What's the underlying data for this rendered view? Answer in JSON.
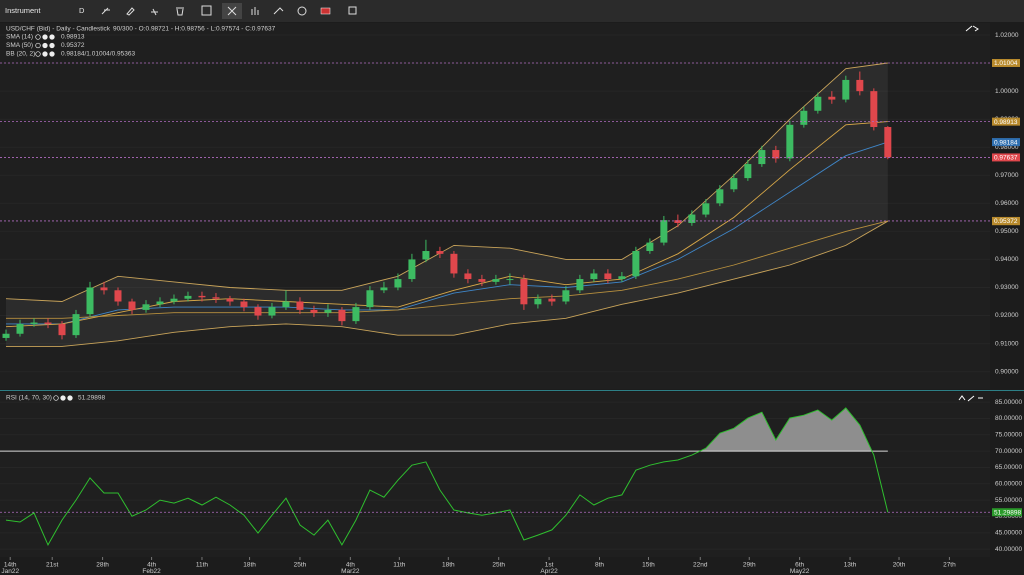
{
  "toolbar": {
    "instrument": "Instrument",
    "period": "D"
  },
  "chart_data": [
    {
      "type": "candlestick",
      "title": "USD/CHF (Bid) - Daily - Candlestick",
      "info": "90/300 - O:0.98721 - H:0.98756 - L:0.97574 - C:0.97637",
      "legend": [
        {
          "name": "SMA (14)",
          "reading": "0.98913"
        },
        {
          "name": "SMA (50)",
          "reading": "0.95372"
        },
        {
          "name": "BB (20, 2)",
          "reading": "0.98184/1.01004/0.95363"
        }
      ],
      "up_color": "#3dbb62",
      "down_color": "#e0474c",
      "open": [
        0.912,
        0.9135,
        0.917,
        0.9175,
        0.917,
        0.913,
        0.9205,
        0.93,
        0.929,
        0.925,
        0.922,
        0.924,
        0.925,
        0.926,
        0.927,
        0.9265,
        0.926,
        0.925,
        0.923,
        0.92,
        0.923,
        0.925,
        0.922,
        0.921,
        0.922,
        0.918,
        0.923,
        0.929,
        0.93,
        0.933,
        0.94,
        0.943,
        0.942,
        0.935,
        0.933,
        0.932,
        0.933,
        0.933,
        0.924,
        0.926,
        0.925,
        0.929,
        0.933,
        0.935,
        0.933,
        0.934,
        0.943,
        0.946,
        0.954,
        0.953,
        0.956,
        0.96,
        0.965,
        0.969,
        0.974,
        0.979,
        0.976,
        0.988,
        0.993,
        0.998,
        0.997,
        1.004,
        1.0,
        0.98721
      ],
      "high": [
        0.915,
        0.9185,
        0.919,
        0.919,
        0.918,
        0.922,
        0.932,
        0.932,
        0.93,
        0.926,
        0.9255,
        0.9265,
        0.9275,
        0.9285,
        0.9285,
        0.928,
        0.927,
        0.926,
        0.924,
        0.9245,
        0.929,
        0.9265,
        0.9235,
        0.924,
        0.923,
        0.9245,
        0.9305,
        0.932,
        0.935,
        0.942,
        0.947,
        0.9445,
        0.943,
        0.9365,
        0.9345,
        0.9345,
        0.935,
        0.9345,
        0.9275,
        0.9275,
        0.9305,
        0.9345,
        0.9365,
        0.9365,
        0.9355,
        0.9445,
        0.9475,
        0.9555,
        0.956,
        0.9575,
        0.9615,
        0.9665,
        0.9705,
        0.9755,
        0.9805,
        0.9805,
        0.9895,
        0.9945,
        0.9995,
        1.0,
        1.0055,
        1.007,
        1.001,
        0.98756
      ],
      "low": [
        0.911,
        0.9125,
        0.916,
        0.9155,
        0.9115,
        0.912,
        0.9195,
        0.9275,
        0.9235,
        0.9205,
        0.921,
        0.923,
        0.924,
        0.925,
        0.925,
        0.9245,
        0.9235,
        0.9215,
        0.9185,
        0.919,
        0.922,
        0.9205,
        0.9195,
        0.9195,
        0.9165,
        0.917,
        0.922,
        0.928,
        0.929,
        0.932,
        0.939,
        0.9405,
        0.9335,
        0.9315,
        0.9305,
        0.931,
        0.931,
        0.922,
        0.9225,
        0.9235,
        0.924,
        0.928,
        0.932,
        0.9315,
        0.932,
        0.933,
        0.942,
        0.945,
        0.9515,
        0.952,
        0.955,
        0.959,
        0.964,
        0.968,
        0.973,
        0.9745,
        0.975,
        0.987,
        0.992,
        0.9955,
        0.996,
        0.9985,
        0.986,
        0.97574
      ],
      "close": [
        0.9135,
        0.917,
        0.9175,
        0.917,
        0.913,
        0.9205,
        0.93,
        0.929,
        0.925,
        0.922,
        0.924,
        0.925,
        0.926,
        0.927,
        0.9265,
        0.926,
        0.925,
        0.923,
        0.92,
        0.923,
        0.925,
        0.922,
        0.921,
        0.922,
        0.918,
        0.923,
        0.929,
        0.93,
        0.933,
        0.94,
        0.943,
        0.942,
        0.935,
        0.933,
        0.932,
        0.933,
        0.933,
        0.924,
        0.926,
        0.925,
        0.929,
        0.933,
        0.935,
        0.933,
        0.934,
        0.943,
        0.946,
        0.954,
        0.953,
        0.956,
        0.96,
        0.965,
        0.969,
        0.974,
        0.979,
        0.976,
        0.988,
        0.993,
        0.998,
        0.997,
        1.004,
        1.0,
        0.98721,
        0.97637
      ],
      "series": [
        {
          "color": "#c9a45a",
          "dashed": true,
          "x": [
            0,
            4,
            8,
            12,
            16,
            20,
            24,
            28,
            32,
            36,
            40,
            44,
            48,
            52,
            56,
            60,
            63
          ],
          "values": [
            0.926,
            0.925,
            0.934,
            0.932,
            0.93,
            0.929,
            0.929,
            0.934,
            0.945,
            0.944,
            0.94,
            0.94,
            0.952,
            0.97,
            0.99,
            1.008,
            1.01004
          ]
        },
        {
          "color": "#c9a45a",
          "x": [
            0,
            4,
            8,
            12,
            16,
            20,
            24,
            28,
            32,
            36,
            40,
            44,
            48,
            52,
            56,
            60,
            63
          ],
          "values": [
            0.909,
            0.909,
            0.911,
            0.914,
            0.916,
            0.917,
            0.916,
            0.913,
            0.913,
            0.917,
            0.919,
            0.924,
            0.928,
            0.933,
            0.938,
            0.945,
            0.95363
          ]
        },
        {
          "color": "#3f86c8",
          "x": [
            0,
            4,
            8,
            12,
            16,
            20,
            24,
            28,
            32,
            36,
            40,
            44,
            48,
            52,
            56,
            60,
            63
          ],
          "values": [
            0.917,
            0.917,
            0.922,
            0.923,
            0.923,
            0.923,
            0.922,
            0.922,
            0.928,
            0.931,
            0.93,
            0.932,
            0.94,
            0.951,
            0.964,
            0.977,
            0.98184
          ]
        },
        {
          "color": "#d8a848",
          "dashed": true,
          "x": [
            0,
            4,
            8,
            12,
            16,
            20,
            24,
            28,
            32,
            36,
            40,
            44,
            48,
            52,
            56,
            60,
            63
          ],
          "values": [
            0.916,
            0.917,
            0.921,
            0.925,
            0.926,
            0.925,
            0.924,
            0.923,
            0.929,
            0.934,
            0.931,
            0.933,
            0.942,
            0.955,
            0.972,
            0.988,
            0.98913
          ]
        },
        {
          "color": "#b8903e",
          "dashed": true,
          "x": [
            0,
            4,
            8,
            12,
            16,
            20,
            24,
            28,
            32,
            36,
            40,
            44,
            48,
            52,
            56,
            60,
            63
          ],
          "values": [
            0.919,
            0.919,
            0.92,
            0.921,
            0.921,
            0.921,
            0.921,
            0.922,
            0.924,
            0.926,
            0.927,
            0.929,
            0.933,
            0.938,
            0.944,
            0.95,
            0.95372
          ]
        }
      ],
      "close_dashed": true,
      "xlim": [
        -0.43,
        70.3
      ],
      "ylim": [
        0.8938,
        1.0243
      ],
      "yticks": [
        {
          "value": 1.02,
          "label": "1.02000"
        },
        {
          "value": 1.01,
          "label": "1.01000"
        },
        {
          "value": 1.0,
          "label": "1.00000"
        },
        {
          "value": 0.99,
          "label": "0.99000"
        },
        {
          "value": 0.98,
          "label": "0.98000"
        },
        {
          "value": 0.97,
          "label": "0.97000"
        },
        {
          "value": 0.96,
          "label": "0.96000"
        },
        {
          "value": 0.95,
          "label": "0.95000"
        },
        {
          "value": 0.94,
          "label": "0.94000"
        },
        {
          "value": 0.93,
          "label": "0.93000"
        },
        {
          "value": 0.92,
          "label": "0.92000"
        },
        {
          "value": 0.91,
          "label": "0.91000"
        },
        {
          "value": 0.9,
          "label": "0.90000"
        }
      ]
    },
    {
      "type": "line",
      "title": "RSI (14, 70, 30)",
      "color": "#2fbf2f",
      "overbought": 70,
      "values": [
        48.9,
        48.3,
        51.1,
        41.3,
        48.9,
        55.0,
        61.8,
        57.2,
        57.2,
        50.1,
        52.0,
        55.0,
        54.1,
        55.6,
        53.5,
        55.9,
        53.5,
        50.4,
        44.9,
        50.4,
        55.6,
        47.4,
        44.3,
        48.9,
        41.3,
        48.9,
        58.1,
        55.9,
        61.1,
        65.7,
        66.7,
        58.1,
        52.0,
        51.1,
        50.4,
        51.1,
        52.0,
        42.8,
        44.3,
        45.9,
        50.4,
        56.6,
        53.5,
        55.6,
        56.6,
        64.2,
        65.7,
        66.7,
        67.3,
        68.8,
        70.9,
        75.5,
        77.0,
        80.1,
        81.9,
        73.4,
        80.1,
        81.0,
        82.6,
        79.5,
        83.2,
        78.0,
        68.8,
        51.29898
      ],
      "xlim": [
        -0.43,
        70.3
      ],
      "ylim": [
        37.6,
        88.1
      ],
      "yticks": [
        {
          "value": 85,
          "label": "85.00000"
        },
        {
          "value": 80,
          "label": "80.00000"
        },
        {
          "value": 75,
          "label": "75.00000"
        },
        {
          "value": 70,
          "label": "70.00000"
        },
        {
          "value": 65,
          "label": "65.00000"
        },
        {
          "value": 60,
          "label": "60.00000"
        },
        {
          "value": 55,
          "label": "55.00000"
        },
        {
          "value": 50,
          "label": "50.00000"
        },
        {
          "value": 45,
          "label": "45.00000"
        },
        {
          "value": 40,
          "label": "40.00000"
        }
      ],
      "xticks": [
        {
          "value": 0.3,
          "label": "14th",
          "sublabel": "Jan22"
        },
        {
          "value": 3.3,
          "label": "21st"
        },
        {
          "value": 6.9,
          "label": "28th"
        },
        {
          "value": 10.4,
          "label": "4th",
          "sublabel": "Feb22"
        },
        {
          "value": 14.0,
          "label": "11th"
        },
        {
          "value": 17.4,
          "label": "18th"
        },
        {
          "value": 21.0,
          "label": "25th"
        },
        {
          "value": 24.6,
          "label": "4th",
          "sublabel": "Mar22"
        },
        {
          "value": 28.1,
          "label": "11th"
        },
        {
          "value": 31.6,
          "label": "18th"
        },
        {
          "value": 35.2,
          "label": "25th"
        },
        {
          "value": 38.8,
          "label": "1st",
          "sublabel": "Apr22"
        },
        {
          "value": 42.4,
          "label": "8th"
        },
        {
          "value": 45.9,
          "label": "15th"
        },
        {
          "value": 49.6,
          "label": "22nd"
        },
        {
          "value": 53.1,
          "label": "29th"
        },
        {
          "value": 56.7,
          "label": "6th",
          "sublabel": "May22"
        },
        {
          "value": 60.3,
          "label": "13th"
        },
        {
          "value": 63.8,
          "label": "20th"
        },
        {
          "value": 67.4,
          "label": "27th"
        }
      ]
    }
  ]
}
